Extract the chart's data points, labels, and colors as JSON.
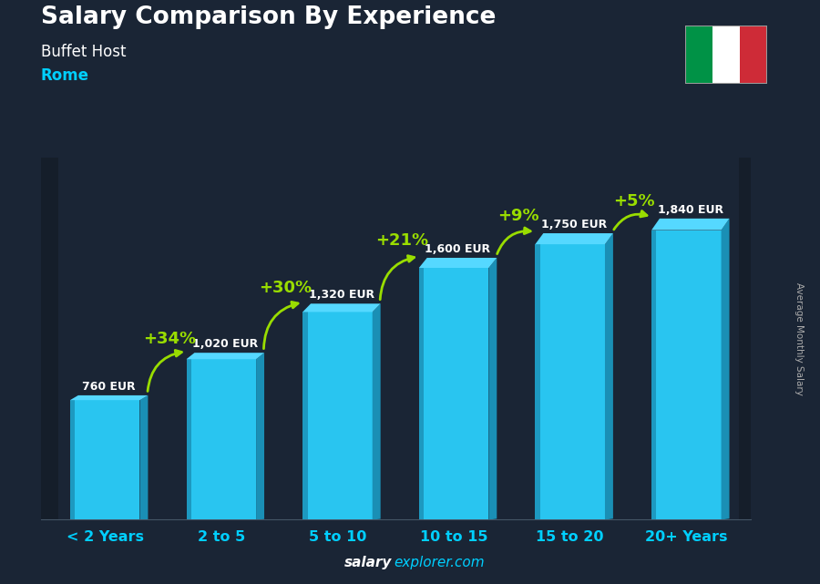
{
  "title": "Salary Comparison By Experience",
  "subtitle": "Buffet Host",
  "city": "Rome",
  "categories": [
    "< 2 Years",
    "2 to 5",
    "5 to 10",
    "10 to 15",
    "15 to 20",
    "20+ Years"
  ],
  "values": [
    760,
    1020,
    1320,
    1600,
    1750,
    1840
  ],
  "value_labels": [
    "760 EUR",
    "1,020 EUR",
    "1,320 EUR",
    "1,600 EUR",
    "1,750 EUR",
    "1,840 EUR"
  ],
  "pct_labels": [
    "+34%",
    "+30%",
    "+21%",
    "+9%",
    "+5%"
  ],
  "bar_color_main": "#29c5f0",
  "bar_color_dark": "#1a8fb5",
  "bar_color_light": "#55d8ff",
  "bg_dark": "#1a2535",
  "text_color_white": "#ffffff",
  "text_color_cyan": "#00cfff",
  "text_color_green": "#99dd00",
  "ylabel": "Average Monthly Salary",
  "watermark_bold": "salary",
  "watermark_rest": "explorer.com",
  "ylim": [
    0,
    2300
  ],
  "figsize": [
    9.0,
    6.41
  ],
  "dpi": 100,
  "bar_width": 0.6,
  "flag_green": "#009246",
  "flag_red": "#ce2b37"
}
